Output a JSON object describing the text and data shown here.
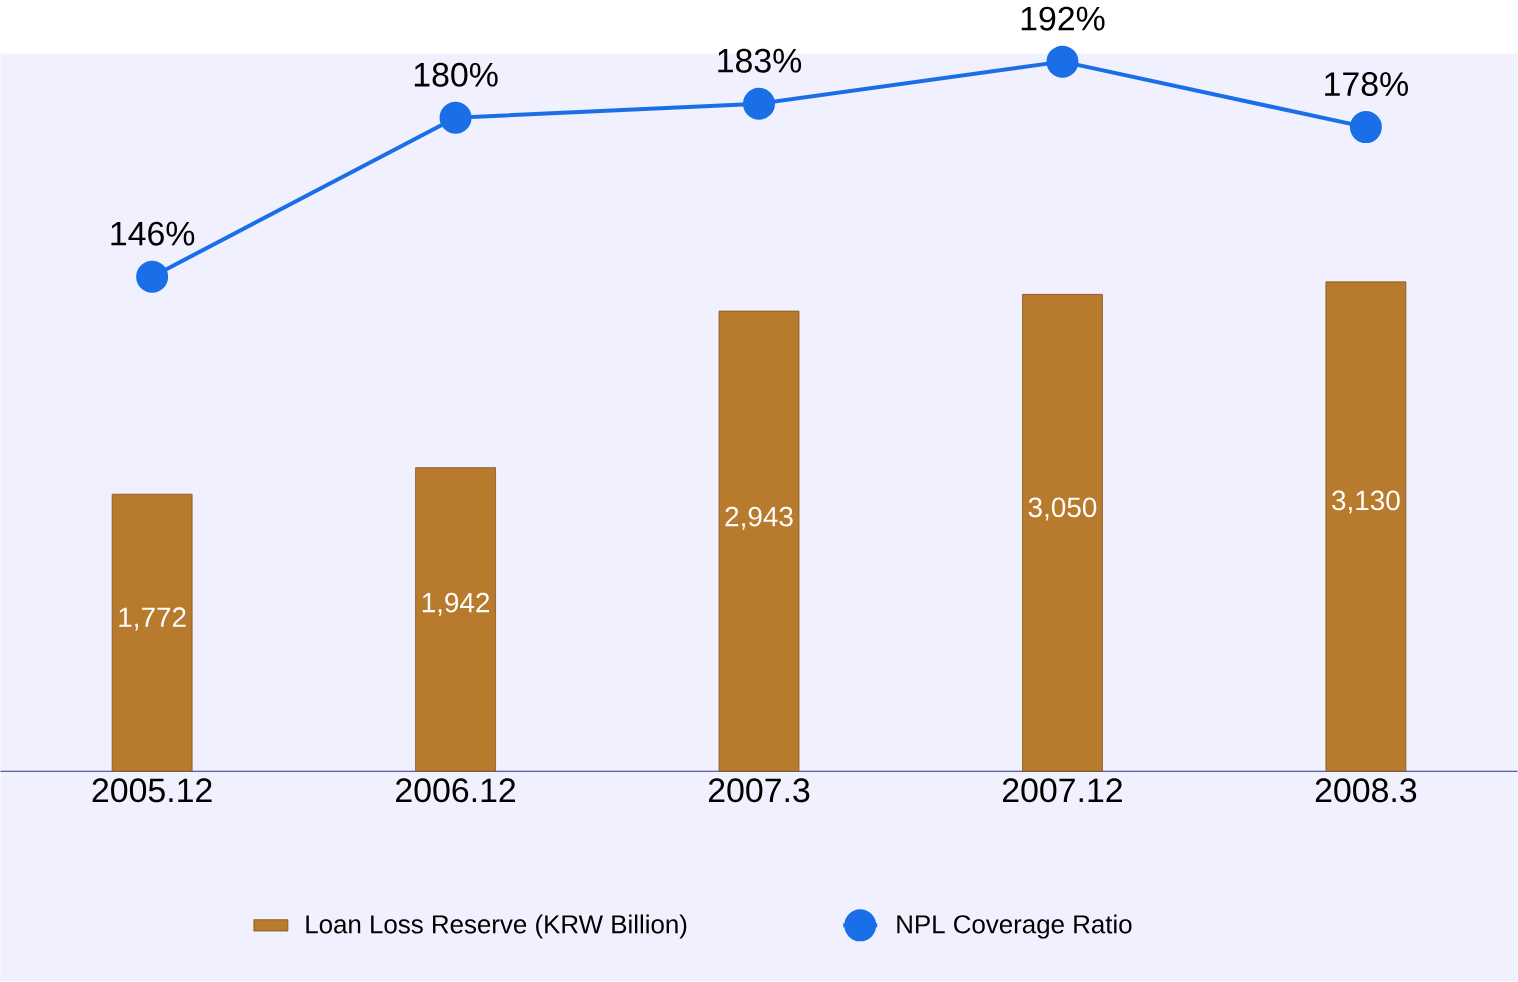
{
  "chart_data": [
    {
      "type": "bar",
      "categories": [
        "2005.12",
        "2006.12",
        "2007.3",
        "2007.12",
        "2008.3"
      ],
      "tick_labels": "x",
      "legend": "bottom",
      "series": [
        {
          "name": "Loan Loss Reserve (KRW Billion)",
          "color": "#b87a2c",
          "values": [
            1772,
            1942,
            2943,
            3050,
            3130
          ],
          "value_labels": [
            "1,772",
            "1,942",
            "2,943",
            "3,050",
            "3,130"
          ]
        }
      ]
    },
    {
      "type": "line",
      "categories": [
        "2005.12",
        "2006.12",
        "2007.3",
        "2007.12",
        "2008.3"
      ],
      "tick_labels": false,
      "legend": "bottom",
      "marker": "circle",
      "series": [
        {
          "name": "NPL Coverage Ratio",
          "color": "#1a6fe8",
          "values": [
            146,
            180,
            183,
            192,
            178
          ],
          "value_labels": [
            "146%",
            "180%",
            "183%",
            "192%",
            "178%"
          ]
        }
      ]
    }
  ]
}
